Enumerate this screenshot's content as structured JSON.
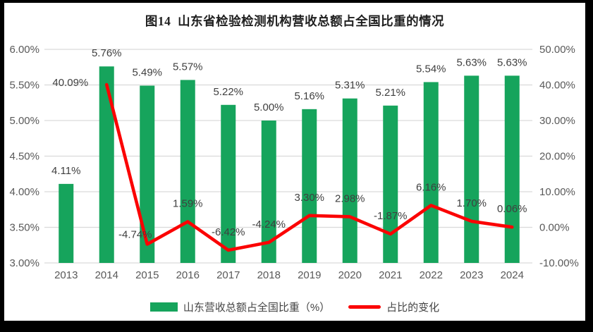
{
  "chart": {
    "title": "图14  山东省检验检测机构营收总额占全国比重的情况",
    "colors": {
      "bar_green": "#16a45c",
      "line_red": "#fb0303",
      "grid": "#d9d9d9",
      "axis_text": "#595959",
      "label_text": "#3f3f3f",
      "frame_border": "#000000",
      "background": "#ffffff"
    },
    "legend": [
      {
        "swatch": "bar-swatch",
        "label": "山东营收总额占全国比重（%）"
      },
      {
        "swatch": "line-swatch",
        "label": "占比的变化"
      }
    ]
  },
  "chart_data": {
    "type": "combo-bar-line",
    "title": "图14  山东省检验检测机构营收总额占全国比重的情况",
    "categories": [
      "2013",
      "2014",
      "2015",
      "2016",
      "2017",
      "2018",
      "2019",
      "2020",
      "2021",
      "2022",
      "2023",
      "2024"
    ],
    "series": [
      {
        "name": "山东营收总额占全国比重（%）",
        "type": "bar",
        "axis": "left",
        "values": [
          4.11,
          5.76,
          5.49,
          5.57,
          5.22,
          5.0,
          5.16,
          5.31,
          5.21,
          5.54,
          5.63,
          5.63
        ],
        "labels": [
          "4.11%",
          "5.76%",
          "5.49%",
          "5.57%",
          "5.22%",
          "5.00%",
          "5.16%",
          "5.31%",
          "5.21%",
          "5.54%",
          "5.63%",
          "5.63%"
        ]
      },
      {
        "name": "占比的变化",
        "type": "line",
        "axis": "right",
        "values": [
          null,
          40.09,
          -4.74,
          1.59,
          -6.42,
          -4.24,
          3.3,
          2.98,
          -1.87,
          6.16,
          1.7,
          0.06
        ],
        "labels": [
          null,
          "40.09%",
          "-4.74%",
          "1.59%",
          "-6.42%",
          "-4.24%",
          "3.30%",
          "2.98%",
          "-1.87%",
          "6.16%",
          "1.70%",
          "0.06%"
        ]
      }
    ],
    "left_axis": {
      "min": 3.0,
      "max": 6.0,
      "step": 0.5,
      "ticks": [
        "6.00%",
        "5.50%",
        "5.00%",
        "4.50%",
        "4.00%",
        "3.50%",
        "3.00%"
      ]
    },
    "right_axis": {
      "min": -10,
      "max": 50,
      "step": 10,
      "ticks": [
        "50.00%",
        "40.00%",
        "30.00%",
        "20.00%",
        "10.00%",
        "0.00%",
        "-10.00%"
      ]
    },
    "grid": true,
    "legend_position": "bottom"
  }
}
